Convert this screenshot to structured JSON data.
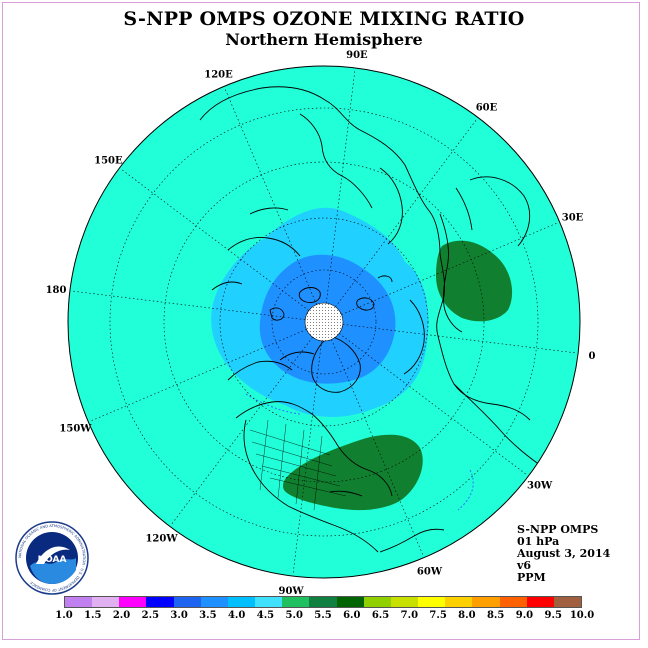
{
  "header": {
    "title": "S-NPP OMPS OZONE MIXING RATIO",
    "subtitle": "Northern Hemisphere"
  },
  "longitude_labels": [
    "90E",
    "60E",
    "30E",
    "0",
    "30W",
    "60W",
    "90W",
    "120W",
    "150W",
    "180",
    "150E",
    "120E"
  ],
  "info": {
    "instrument": "S-NPP OMPS",
    "level": "01 hPa",
    "date": "August 3, 2014",
    "version": "v6",
    "units": "PPM"
  },
  "logo": {
    "text": "NOAA",
    "ring_text": "NATIONAL OCEANIC AND ATMOSPHERIC ADMINISTRATION · U.S. DEPARTMENT OF COMMERCE"
  },
  "colorbar": {
    "ticks": [
      "1.0",
      "1.5",
      "2.0",
      "2.5",
      "3.0",
      "3.5",
      "4.0",
      "4.5",
      "5.0",
      "5.5",
      "6.0",
      "6.5",
      "7.0",
      "7.5",
      "8.0",
      "8.5",
      "9.0",
      "9.5",
      "10.0"
    ],
    "colors": [
      "#c080f0",
      "#e0b0f0",
      "#ff00ff",
      "#0000ff",
      "#1e64f0",
      "#1e90ff",
      "#00bfff",
      "#40e0ff",
      "#20c060",
      "#108040",
      "#006400",
      "#90d000",
      "#c8e000",
      "#ffff00",
      "#ffd000",
      "#ffa000",
      "#ff6000",
      "#ff0000",
      "#a06040"
    ]
  },
  "field_colors": {
    "background_4_5": "#20ffd8",
    "level_4_0": "#20d0ff",
    "level_3_5": "#1e90ff",
    "level_5_0": "#108030",
    "polar_mask": "#ffffff",
    "coast": "#000000"
  }
}
